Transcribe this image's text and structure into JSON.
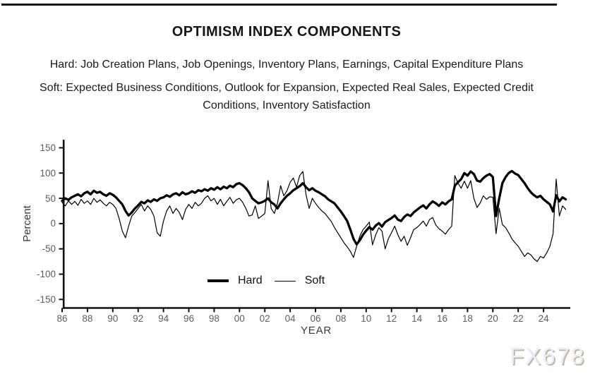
{
  "page": {
    "title": "OPTIMISM INDEX COMPONENTS",
    "subtitle_hard": "Hard: Job Creation Plans, Job Openings, Inventory Plans, Earnings, Capital Expenditure Plans",
    "subtitle_soft": "Soft: Expected Business Conditions, Outlook for Expansion, Expected Real Sales, Expected Credit Conditions, Inventory Satisfaction",
    "watermark": "FX678"
  },
  "colors": {
    "line": "#000000",
    "axis": "#111111",
    "tick_text": "#5d5d5d",
    "axis_title_text": "#3a3a3a",
    "heading_text": "#161616",
    "top_rule": "#141414",
    "watermark_fill": "#e9effa",
    "watermark_shadow": "#c9b7a3",
    "background": "#ffffff"
  },
  "chart_data": {
    "type": "line",
    "title": "",
    "xlabel": "YEAR",
    "ylabel": "Percent",
    "ylim": [
      -150,
      150
    ],
    "y_ticks": [
      150,
      100,
      50,
      0,
      -50,
      -100,
      -150
    ],
    "x_tick_years": [
      1986,
      1988,
      1990,
      1992,
      1994,
      1996,
      1998,
      2000,
      2002,
      2004,
      2006,
      2008,
      2010,
      2012,
      2014,
      2016,
      2018,
      2020,
      2022,
      2024
    ],
    "x_tick_labels": [
      "86",
      "88",
      "90",
      "92",
      "94",
      "96",
      "98",
      "00",
      "02",
      "04",
      "06",
      "08",
      "10",
      "12",
      "14",
      "16",
      "18",
      "20",
      "22",
      "24"
    ],
    "x_start": 1986.0,
    "x_step": 0.25,
    "x_end": 2025.75,
    "grid": false,
    "legend_position": "bottom-center-inside",
    "legend": [
      {
        "label": "Hard",
        "style": "thick"
      },
      {
        "label": "Soft",
        "style": "thin"
      }
    ],
    "series": [
      {
        "name": "Hard",
        "stroke_width": 3.3,
        "values": [
          45,
          50,
          47,
          52,
          55,
          58,
          54,
          60,
          63,
          58,
          65,
          61,
          63,
          58,
          55,
          60,
          57,
          52,
          45,
          38,
          25,
          16,
          22,
          30,
          36,
          43,
          40,
          46,
          43,
          48,
          45,
          50,
          52,
          56,
          53,
          58,
          60,
          56,
          62,
          58,
          60,
          64,
          61,
          66,
          64,
          68,
          65,
          70,
          67,
          72,
          68,
          73,
          70,
          75,
          72,
          78,
          80,
          76,
          70,
          62,
          50,
          45,
          40,
          42,
          45,
          50,
          42,
          38,
          30,
          40,
          48,
          55,
          60,
          66,
          70,
          74,
          80,
          72,
          66,
          70,
          65,
          62,
          58,
          54,
          48,
          44,
          40,
          32,
          24,
          15,
          5,
          -12,
          -30,
          -41,
          -33,
          -22,
          -14,
          -7,
          -12,
          -4,
          1,
          -6,
          3,
          7,
          11,
          16,
          8,
          5,
          13,
          18,
          15,
          22,
          27,
          32,
          36,
          30,
          38,
          44,
          40,
          35,
          42,
          38,
          44,
          48,
          75,
          82,
          88,
          100,
          95,
          103,
          98,
          85,
          83,
          90,
          95,
          98,
          92,
          15,
          50,
          80,
          92,
          100,
          104,
          99,
          96,
          88,
          80,
          70,
          62,
          56,
          52,
          55,
          48,
          43,
          38,
          24,
          56,
          44,
          52,
          48
        ]
      },
      {
        "name": "Soft",
        "stroke_width": 1.2,
        "values": [
          42,
          35,
          45,
          38,
          44,
          36,
          48,
          40,
          45,
          38,
          50,
          42,
          47,
          40,
          35,
          42,
          38,
          30,
          10,
          -15,
          -28,
          -5,
          15,
          22,
          30,
          38,
          25,
          35,
          28,
          15,
          -18,
          -25,
          5,
          25,
          35,
          20,
          30,
          22,
          8,
          28,
          38,
          30,
          42,
          35,
          40,
          50,
          55,
          45,
          50,
          38,
          48,
          35,
          44,
          52,
          40,
          47,
          50,
          42,
          30,
          15,
          17,
          35,
          10,
          15,
          20,
          85,
          30,
          20,
          40,
          75,
          55,
          65,
          82,
          90,
          72,
          95,
          103,
          58,
          30,
          50,
          40,
          32,
          25,
          20,
          12,
          4,
          -8,
          -18,
          -28,
          -38,
          -46,
          -55,
          -67,
          -45,
          -25,
          -12,
          -5,
          3,
          -42,
          -22,
          -8,
          -15,
          -50,
          -30,
          -18,
          -5,
          -22,
          -35,
          -25,
          -43,
          -28,
          -12,
          -8,
          -2,
          5,
          -5,
          8,
          12,
          -3,
          -10,
          -15,
          -21,
          -12,
          -5,
          95,
          80,
          70,
          84,
          70,
          85,
          50,
          32,
          41,
          55,
          48,
          53,
          52,
          -20,
          30,
          -2,
          -8,
          -18,
          -30,
          -38,
          -45,
          -55,
          -65,
          -58,
          -62,
          -70,
          -75,
          -65,
          -68,
          -58,
          -45,
          -20,
          88,
          15,
          35,
          28
        ]
      }
    ]
  }
}
